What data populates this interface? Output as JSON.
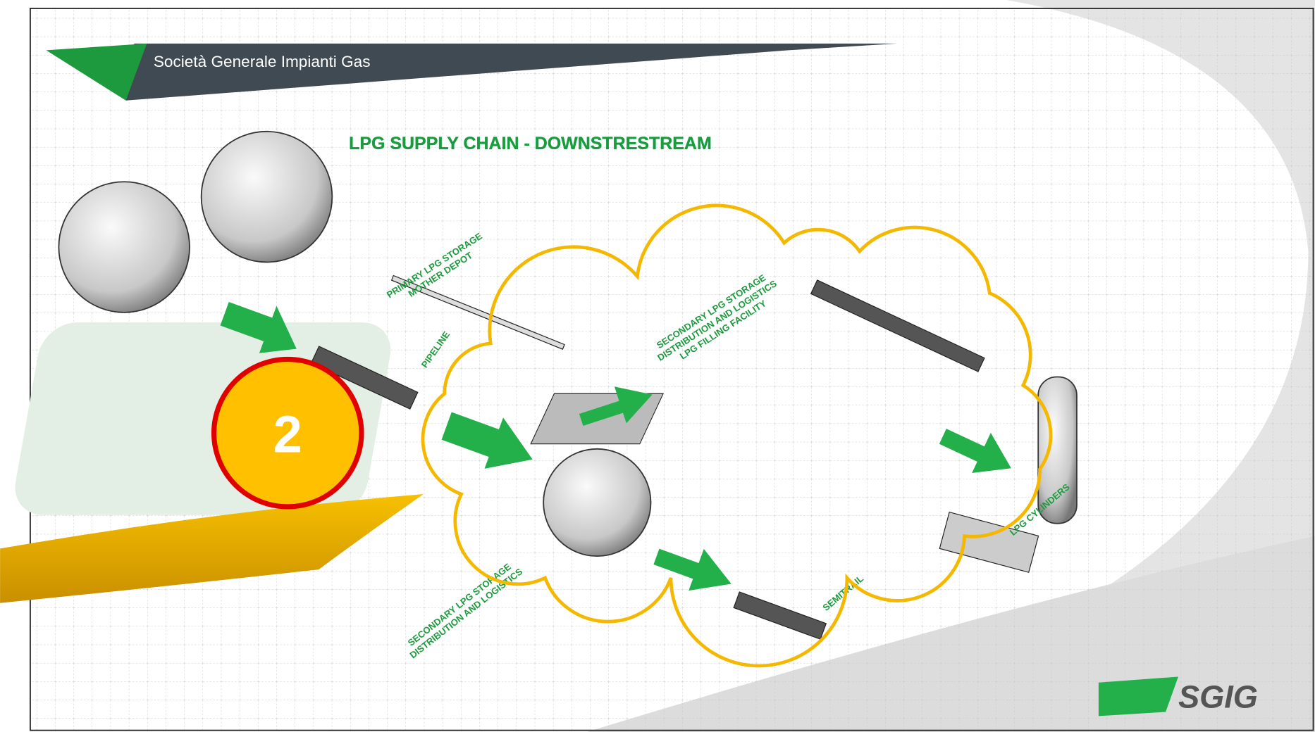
{
  "header": {
    "company": "Società Generale Impianti Gas",
    "title": "LPG SUPPLY CHAIN - DOWNSTRESTREAM"
  },
  "labels": {
    "primary_storage": [
      "PRIMARY LPG STORAGE",
      "MOTHER DEPOT"
    ],
    "pipeline": "PIPELINE",
    "secondary_top": [
      "SECONDARY LPG STORAGE",
      "DISTRIBUTION AND LOGISTICS",
      "LPG FILLING FACILITY"
    ],
    "cylinders": "LPG CYLINDERS",
    "semitrailer": "SEMITRAIL",
    "secondary_bottom": [
      "SECONDARY LPG STORAGE",
      "DISTRIBUTION AND LOGISTICS"
    ]
  },
  "callout": {
    "number": "2"
  },
  "logo": "SGIG"
}
